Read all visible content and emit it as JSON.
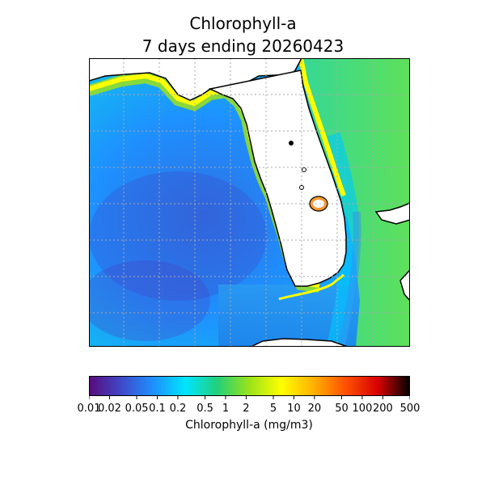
{
  "title": {
    "line1": "Chlorophyll-a",
    "line2": "7 days ending 20260423"
  },
  "colorbar": {
    "label": "Chlorophyll-a (mg/m3)",
    "scale": "log",
    "range": [
      0.01,
      500
    ],
    "ticks": [
      "0.01",
      "0.02",
      "0.05",
      "0.1",
      "0.2",
      "0.5",
      "1",
      "2",
      "5",
      "10",
      "20",
      "50",
      "100",
      "200",
      "500"
    ],
    "colormap": [
      "#5a0a7a",
      "#3f48c8",
      "#1e90ff",
      "#00e5ff",
      "#22d07a",
      "#9be21a",
      "#ffff00",
      "#ffb000",
      "#ff5000",
      "#d80000",
      "#000000"
    ]
  },
  "map": {
    "region": "Florida",
    "land_color": "#ffffff",
    "coastline_color": "#000000",
    "grid": "dotted"
  }
}
